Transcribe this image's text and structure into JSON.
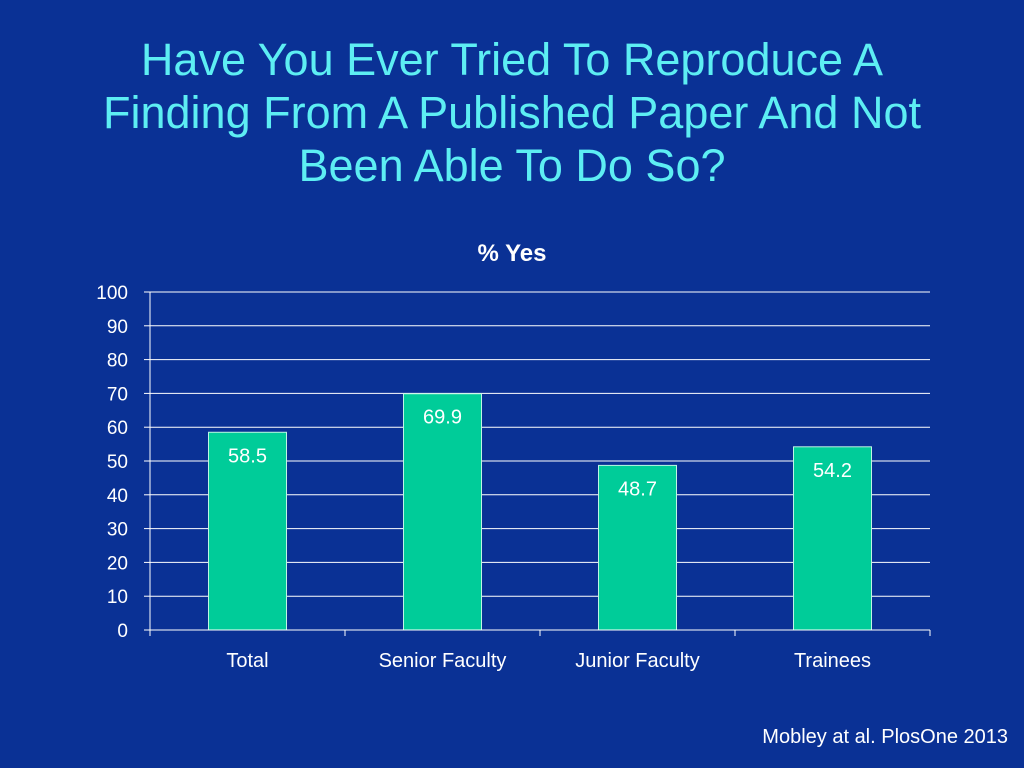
{
  "slide": {
    "title": "Have You Ever Tried To Reproduce A Finding From A Published Paper And Not Been Able To Do So?",
    "footer": "Mobley at al. PlosOne 2013",
    "colors": {
      "background": "#0A3195",
      "title": "#5DEEF3",
      "bar": "#00CC99",
      "text": "#FFFFFF"
    }
  },
  "chart_data": {
    "type": "bar",
    "title": "% Yes",
    "categories": [
      "Total",
      "Senior Faculty",
      "Junior Faculty",
      "Trainees"
    ],
    "values": [
      58.5,
      69.9,
      48.7,
      54.2
    ],
    "xlabel": "",
    "ylabel": "",
    "ylim": [
      0,
      100
    ],
    "yticks": [
      0,
      10,
      20,
      30,
      40,
      50,
      60,
      70,
      80,
      90,
      100
    ],
    "grid": true,
    "legend": "none"
  }
}
